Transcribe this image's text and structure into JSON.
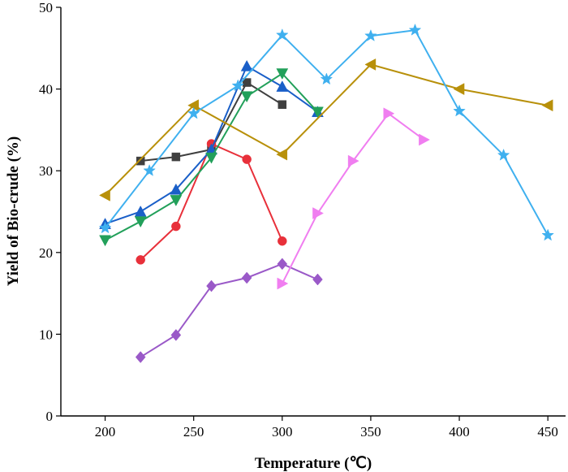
{
  "chart_data": {
    "type": "line",
    "title": "",
    "xlabel": "Temperature (℃)",
    "ylabel": "Yield of Bio-crude (%)",
    "xlim": [
      175,
      460
    ],
    "ylim": [
      0,
      50
    ],
    "xticks": [
      200,
      250,
      300,
      350,
      400,
      450
    ],
    "yticks": [
      0,
      10,
      20,
      30,
      40,
      50
    ],
    "grid": false,
    "legend": "none",
    "series": [
      {
        "name": "series-gray-square",
        "color": "#3f3f3f",
        "marker": "square",
        "x": [
          220,
          240,
          260,
          280,
          300
        ],
        "y": [
          31.2,
          31.7,
          32.6,
          40.8,
          38.1
        ]
      },
      {
        "name": "series-red-circle",
        "color": "#e8303a",
        "marker": "circle",
        "x": [
          220,
          240,
          260,
          280,
          300
        ],
        "y": [
          19.1,
          23.2,
          33.3,
          31.4,
          21.4
        ]
      },
      {
        "name": "series-blue-triangle-up",
        "color": "#1a5fc8",
        "marker": "triangle-up",
        "x": [
          200,
          220,
          240,
          260,
          280,
          300,
          320
        ],
        "y": [
          23.5,
          25.0,
          27.7,
          32.6,
          42.8,
          40.3,
          37.2
        ]
      },
      {
        "name": "series-green-triangle-down",
        "color": "#22a05a",
        "marker": "triangle-down",
        "x": [
          200,
          220,
          240,
          260,
          280,
          300,
          320
        ],
        "y": [
          21.5,
          23.8,
          26.4,
          31.6,
          39.1,
          41.9,
          37.2
        ]
      },
      {
        "name": "series-purple-diamond",
        "color": "#9a59c8",
        "marker": "diamond",
        "x": [
          220,
          240,
          260,
          280,
          300,
          320
        ],
        "y": [
          7.2,
          9.9,
          15.9,
          16.9,
          18.6,
          16.7
        ]
      },
      {
        "name": "series-gold-triangle-left",
        "color": "#b8900a",
        "marker": "triangle-left",
        "x": [
          200,
          250,
          300,
          350,
          400,
          450
        ],
        "y": [
          27.0,
          38.0,
          32.0,
          43.0,
          40.0,
          38.0
        ]
      },
      {
        "name": "series-pink-triangle-right",
        "color": "#f07ef0",
        "marker": "triangle-right",
        "x": [
          300,
          320,
          340,
          360,
          380
        ],
        "y": [
          16.2,
          24.8,
          31.2,
          37.0,
          33.8
        ]
      },
      {
        "name": "series-skyblue-star",
        "color": "#3fb0ef",
        "marker": "star",
        "x": [
          200,
          225,
          250,
          275,
          300,
          325,
          350,
          375,
          400,
          425,
          450
        ],
        "y": [
          23.0,
          30.0,
          37.0,
          40.4,
          46.6,
          41.2,
          46.5,
          47.2,
          37.3,
          31.9,
          22.1
        ]
      }
    ]
  }
}
